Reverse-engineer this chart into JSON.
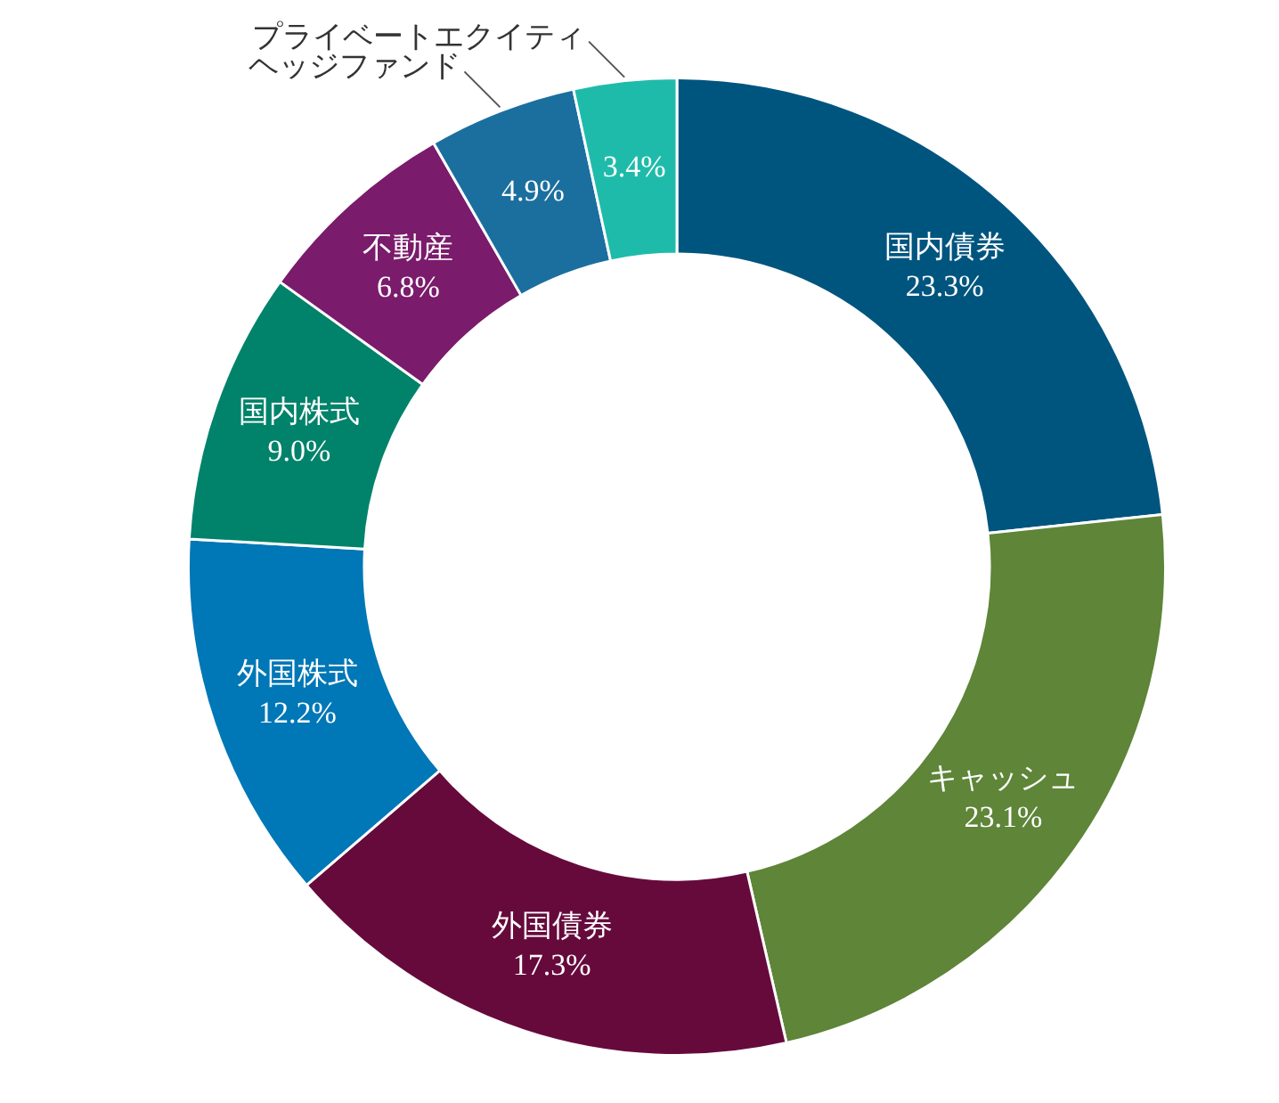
{
  "chart_data": {
    "type": "donut",
    "categories": [
      "国内債券",
      "キャッシュ",
      "外国債券",
      "外国株式",
      "国内株式",
      "不動産",
      "ヘッジファンド",
      "プライベートエクイティ"
    ],
    "values": [
      23.3,
      23.1,
      17.3,
      12.2,
      9.0,
      6.8,
      4.9,
      3.4
    ],
    "value_labels": [
      "23.3%",
      "23.1%",
      "17.3%",
      "12.2%",
      "9.0%",
      "6.8%",
      "4.9%",
      "3.4%"
    ],
    "colors": [
      "#00557f",
      "#5e8538",
      "#660a3c",
      "#0077b6",
      "#00836a",
      "#7a1b6b",
      "#1b6f9f",
      "#1fbbaa"
    ],
    "legend": false
  }
}
